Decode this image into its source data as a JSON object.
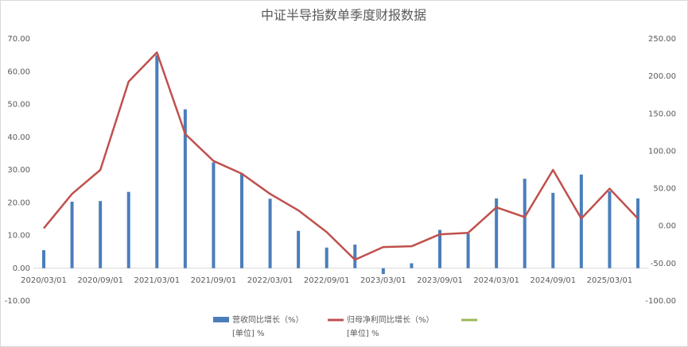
{
  "chart_data": {
    "type": "bar-line",
    "title": "中证半导指数单季度财报数据",
    "categories": [
      "2020/03/01",
      null,
      "2020/09/01",
      null,
      "2021/03/01",
      null,
      "2021/09/01",
      null,
      "2022/03/01",
      null,
      "2022/09/01",
      null,
      "2023/03/01",
      null,
      "2023/09/01",
      null,
      "2024/03/01",
      null,
      "2024/09/01",
      null,
      "2025/03/01",
      null
    ],
    "series": [
      {
        "name": "营收同比增长（%）",
        "unit_label": "[单位] %",
        "color": "#4a7ebb",
        "kind": "bar",
        "values": [
          5.5,
          20.3,
          20.5,
          23.3,
          65,
          48.5,
          32.3,
          29,
          21.2,
          11.4,
          6.3,
          7.2,
          -1.8,
          1.5,
          11.7,
          10.6,
          21.3,
          27.3,
          23,
          28.6,
          23.5,
          21.3
        ]
      },
      {
        "name": "归母净利同比增长（%）",
        "unit_label": "[单位] %",
        "color": "#c0504d",
        "kind": "line",
        "axis": "y2",
        "values": [
          -3,
          43,
          75,
          193,
          232,
          123,
          87,
          70,
          43,
          21,
          -8,
          -45,
          -28,
          -27,
          -11,
          -9,
          25,
          12,
          75,
          10,
          50,
          10
        ]
      }
    ],
    "ylim": [
      -10,
      70
    ],
    "yticks": [
      {
        "value": -10,
        "label": "-10.00"
      },
      {
        "value": 0,
        "label": "0.00"
      },
      {
        "value": 10,
        "label": "10.00"
      },
      {
        "value": 20,
        "label": "20.00"
      },
      {
        "value": 30,
        "label": "30.00"
      },
      {
        "value": 40,
        "label": "40.00"
      },
      {
        "value": 50,
        "label": "50.00"
      },
      {
        "value": 60,
        "label": "60.00"
      },
      {
        "value": 70,
        "label": "70.00"
      }
    ],
    "y2lim": [
      -100,
      250
    ],
    "y2ticks": [
      {
        "value": -100,
        "label": "-100.00"
      },
      {
        "value": -50,
        "label": "-50.00"
      },
      {
        "value": 0,
        "label": "0.00"
      },
      {
        "value": 50,
        "label": "50.00"
      },
      {
        "value": 100,
        "label": "100.00"
      },
      {
        "value": 150,
        "label": "150.00"
      },
      {
        "value": 200,
        "label": "200.00"
      },
      {
        "value": 250,
        "label": "250.00"
      }
    ]
  }
}
